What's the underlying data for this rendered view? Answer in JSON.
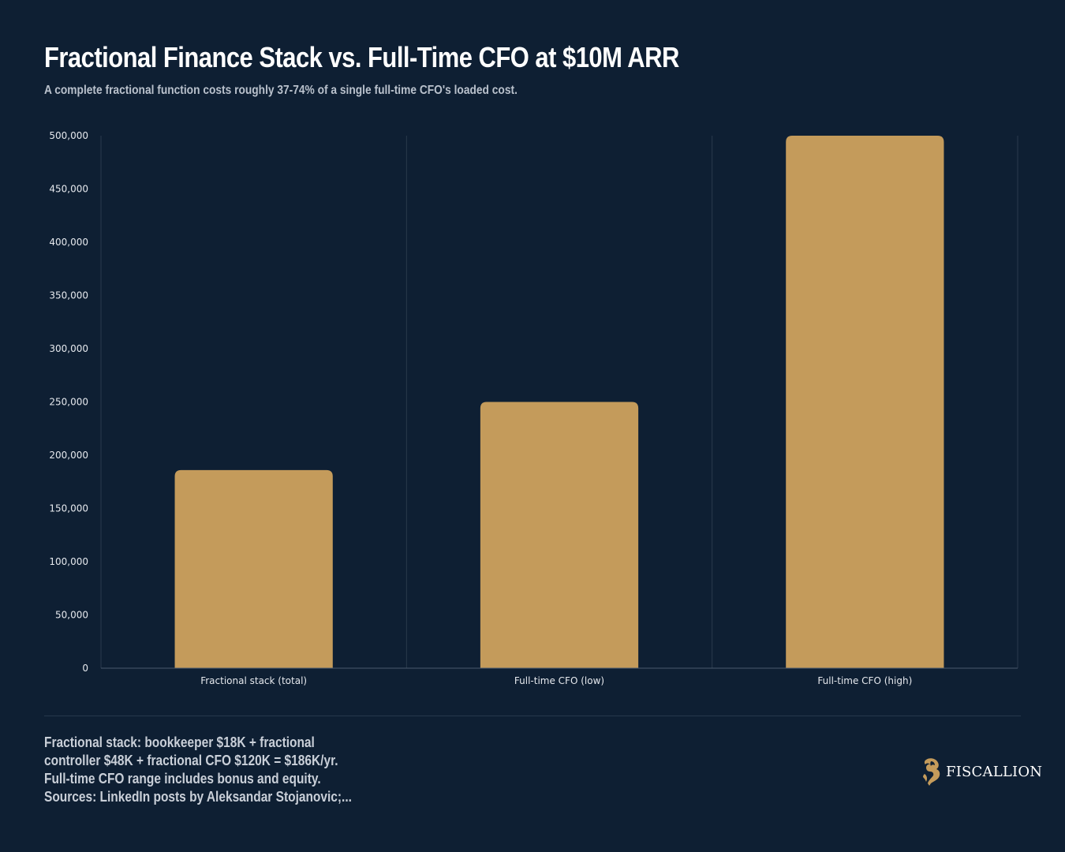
{
  "title": "Fractional Finance Stack vs. Full-Time CFO at $10M ARR",
  "subtitle": "A complete fractional function costs roughly 37-74% of a single full-time CFO's loaded cost.",
  "colors": {
    "background": "#0e1f33",
    "bar": "#c49b5b",
    "gridline": "#2a3a4c",
    "axis": "#4a5a6c",
    "tick_text": "#e6e9ee"
  },
  "chart_data": {
    "type": "bar",
    "title": "",
    "xlabel": "",
    "ylabel": "",
    "categories": [
      "Fractional stack (total)",
      "Full-time CFO (low)",
      "Full-time CFO (high)"
    ],
    "values": [
      186000,
      250000,
      500000
    ],
    "ylim": [
      0,
      500000
    ],
    "yticks": [
      0,
      50000,
      100000,
      150000,
      200000,
      250000,
      300000,
      350000,
      400000,
      450000,
      500000
    ],
    "ytick_labels": [
      "0",
      "50,000",
      "100,000",
      "150,000",
      "200,000",
      "250,000",
      "300,000",
      "350,000",
      "400,000",
      "450,000",
      "500,000"
    ],
    "grid": "vertical separators between categories",
    "legend": "none"
  },
  "footnote": {
    "lines": [
      "Fractional stack: bookkeeper $18K + fractional",
      "controller $48K + fractional CFO $120K = $186K/yr.",
      "Full-time CFO range includes bonus and equity.",
      "Sources: LinkedIn posts by Aleksandar Stojanovic;..."
    ]
  },
  "logo": {
    "icon": "horse-head-logo-icon",
    "text": "FISCALLION"
  }
}
